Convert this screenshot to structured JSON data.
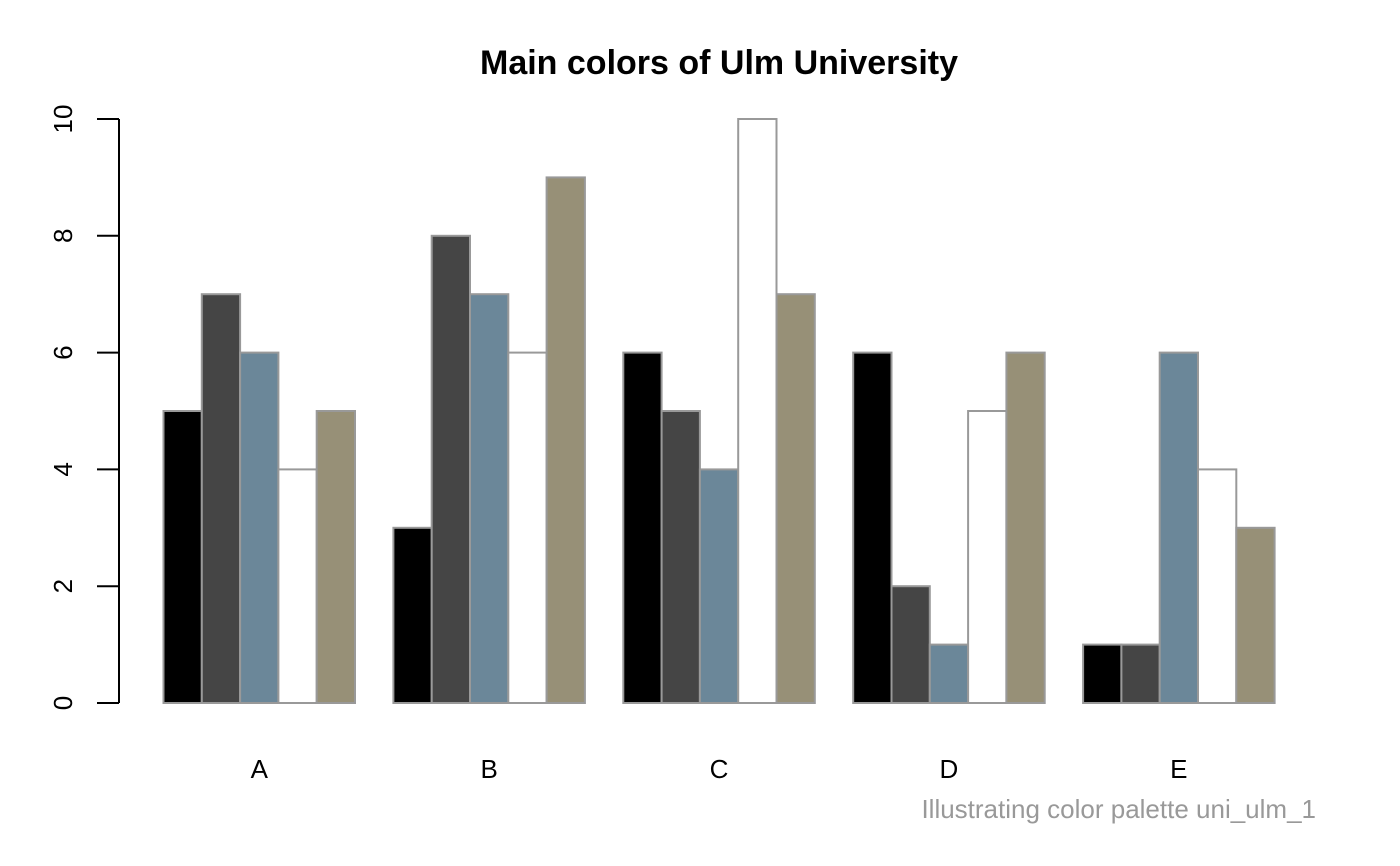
{
  "chart_data": {
    "type": "bar",
    "title": "Main colors of Ulm University",
    "subtitle": "",
    "xlabel": "",
    "ylabel": "",
    "caption": "Illustrating color palette uni_ulm_1",
    "categories": [
      "A",
      "B",
      "C",
      "D",
      "E"
    ],
    "ylim": [
      0,
      10
    ],
    "yticks": [
      0,
      2,
      4,
      6,
      8,
      10
    ],
    "grid": false,
    "legend": "none",
    "bar_border_color": "#999999",
    "series": [
      {
        "color": "#000000",
        "values": [
          5,
          3,
          6,
          6,
          1
        ]
      },
      {
        "color": "#454545",
        "values": [
          7,
          8,
          5,
          2,
          1
        ]
      },
      {
        "color": "#6B8799",
        "values": [
          6,
          7,
          4,
          1,
          6
        ]
      },
      {
        "color": "#FFFFFF",
        "values": [
          4,
          6,
          10,
          5,
          4
        ]
      },
      {
        "color": "#979077",
        "values": [
          5,
          9,
          7,
          6,
          3
        ]
      }
    ]
  }
}
